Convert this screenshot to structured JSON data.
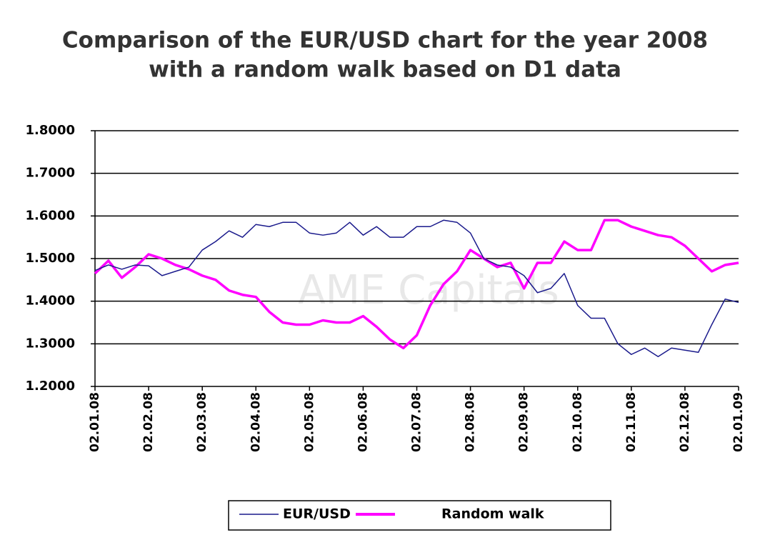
{
  "chart_data": {
    "type": "line",
    "title": [
      "Comparison of the EUR/USD chart for the year 2008",
      "with a random walk based on D1 data"
    ],
    "watermark": "AME Capitals",
    "categories": [
      "02.01.08",
      null,
      null,
      null,
      "02.02.08",
      null,
      null,
      null,
      "02.03.08",
      null,
      null,
      null,
      "02.04.08",
      null,
      null,
      null,
      "02.05.08",
      null,
      null,
      null,
      "02.06.08",
      null,
      null,
      null,
      "02.07.08",
      null,
      null,
      null,
      "02.08.08",
      null,
      null,
      null,
      "02.09.08",
      null,
      null,
      null,
      "02.10.08",
      null,
      null,
      null,
      "02.11.08",
      null,
      null,
      null,
      "02.12.08",
      null,
      null,
      null,
      "02.01.09"
    ],
    "series": [
      {
        "name": "EUR/USD",
        "color": "#1a1a8c",
        "values": [
          1.472,
          1.485,
          1.475,
          1.485,
          1.483,
          1.46,
          1.47,
          1.48,
          1.52,
          1.54,
          1.565,
          1.55,
          1.58,
          1.575,
          1.585,
          1.585,
          1.56,
          1.555,
          1.56,
          1.585,
          1.555,
          1.575,
          1.55,
          1.55,
          1.575,
          1.575,
          1.59,
          1.585,
          1.56,
          1.5,
          1.485,
          1.48,
          1.46,
          1.42,
          1.43,
          1.465,
          1.39,
          1.36,
          1.36,
          1.3,
          1.275,
          1.29,
          1.27,
          1.29,
          1.285,
          1.28,
          1.345,
          1.405,
          1.397
        ]
      },
      {
        "name": "Random walk",
        "color": "#ff00ff",
        "values": [
          1.465,
          1.495,
          1.455,
          1.48,
          1.51,
          1.5,
          1.485,
          1.475,
          1.46,
          1.45,
          1.425,
          1.415,
          1.41,
          1.375,
          1.35,
          1.345,
          1.345,
          1.355,
          1.35,
          1.35,
          1.365,
          1.34,
          1.31,
          1.29,
          1.32,
          1.39,
          1.44,
          1.47,
          1.52,
          1.5,
          1.48,
          1.49,
          1.43,
          1.49,
          1.49,
          1.54,
          1.52,
          1.52,
          1.59,
          1.59,
          1.575,
          1.565,
          1.555,
          1.55,
          1.53,
          1.5,
          1.47,
          1.485,
          1.49
        ]
      }
    ],
    "ylim": [
      1.2,
      1.8
    ],
    "yticks": [
      {
        "value": 1.2,
        "label": "1.2000"
      },
      {
        "value": 1.3,
        "label": "1.3000"
      },
      {
        "value": 1.4,
        "label": "1.4000"
      },
      {
        "value": 1.5,
        "label": "1.5000"
      },
      {
        "value": 1.6,
        "label": "1.6000"
      },
      {
        "value": 1.7,
        "label": "1.7000"
      },
      {
        "value": 1.8,
        "label": "1.8000"
      }
    ],
    "grid": true,
    "legend": "bottom"
  }
}
